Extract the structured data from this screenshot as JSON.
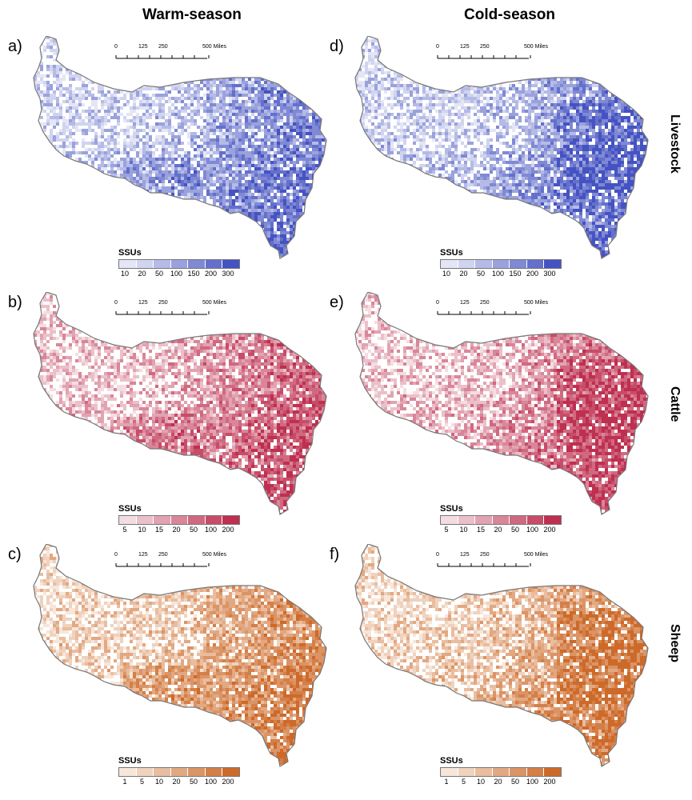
{
  "columns": [
    "Warm-season",
    "Cold-season"
  ],
  "rows": [
    "Livestock",
    "Cattle",
    "Sheep"
  ],
  "panels": [
    {
      "letter": "a)",
      "row": 0,
      "col": 0,
      "legend_ticks": [
        "10",
        "20",
        "50",
        "100",
        "150",
        "200",
        "300"
      ]
    },
    {
      "letter": "d)",
      "row": 0,
      "col": 1,
      "legend_ticks": [
        "10",
        "20",
        "50",
        "100",
        "150",
        "200",
        "300"
      ]
    },
    {
      "letter": "b)",
      "row": 1,
      "col": 0,
      "legend_ticks": [
        "5",
        "10",
        "15",
        "20",
        "50",
        "100",
        "200"
      ]
    },
    {
      "letter": "e)",
      "row": 1,
      "col": 1,
      "legend_ticks": [
        "5",
        "10",
        "15",
        "20",
        "50",
        "100",
        "200"
      ]
    },
    {
      "letter": "c)",
      "row": 2,
      "col": 0,
      "legend_ticks": [
        "1",
        "5",
        "10",
        "20",
        "50",
        "100",
        "200"
      ]
    },
    {
      "letter": "f)",
      "row": 2,
      "col": 1,
      "legend_ticks": [
        "1",
        "5",
        "10",
        "20",
        "50",
        "100",
        "200"
      ]
    }
  ],
  "legend_title": "SSUs",
  "scalebar_labels": [
    "0",
    "125",
    "250",
    "500 Miles"
  ],
  "palettes": {
    "Livestock": [
      "#e4e6f5",
      "#d0d4ef",
      "#b5bbe6",
      "#9aa2dd",
      "#7f89d4",
      "#6470cb",
      "#4553c2"
    ],
    "Cattle": [
      "#f4dde2",
      "#ebc0ca",
      "#e2a3b1",
      "#d98699",
      "#d06980",
      "#c74c68",
      "#be2f50"
    ],
    "Sheep": [
      "#f7e6da",
      "#f0d2bd",
      "#e9bd9f",
      "#e2a882",
      "#db9465",
      "#d47f47",
      "#cd6a2a"
    ]
  }
}
